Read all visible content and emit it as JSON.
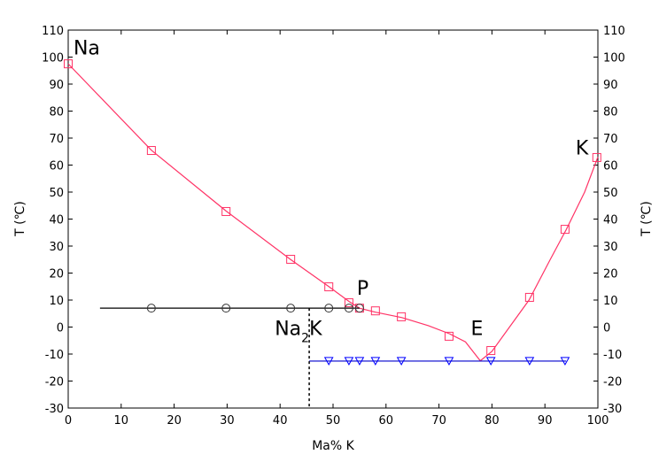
{
  "chart_data": {
    "type": "scatter",
    "xlabel": "Ma% K",
    "ylabel_left": "T (℃)",
    "ylabel_right": "T (℃)",
    "xlim": [
      0,
      100
    ],
    "ylim": [
      -30,
      110
    ],
    "xticks": [
      0,
      10,
      20,
      30,
      40,
      50,
      60,
      70,
      80,
      90,
      100
    ],
    "yticks": [
      -30,
      -20,
      -10,
      0,
      10,
      20,
      30,
      40,
      50,
      60,
      70,
      80,
      90,
      100,
      110
    ],
    "grid": false,
    "colors": {
      "liquidus": "#ff3366",
      "peritectic": "#000000",
      "eutectic": "#0000cc"
    },
    "liquidus_curve": [
      [
        0,
        97.5
      ],
      [
        15.7,
        65.5
      ],
      [
        29.8,
        43
      ],
      [
        42,
        25
      ],
      [
        49.2,
        15
      ],
      [
        53,
        9.5
      ],
      [
        55,
        7
      ],
      [
        58,
        5.5
      ],
      [
        63,
        3.5
      ],
      [
        68,
        0.5
      ],
      [
        72,
        -2.5
      ],
      [
        75,
        -5.5
      ],
      [
        77.8,
        -12.5
      ],
      [
        80,
        -9
      ],
      [
        87,
        10
      ],
      [
        91,
        25
      ],
      [
        94,
        36
      ],
      [
        97.5,
        50
      ],
      [
        100,
        63
      ]
    ],
    "series": [
      {
        "marker": "square",
        "color": "#ff3366",
        "x": [
          0,
          15.7,
          29.8,
          42,
          49.2,
          53,
          55,
          58,
          62.9,
          71.9,
          79.8,
          87.1,
          93.8,
          99.8
        ],
        "y": [
          97.5,
          65.4,
          42.8,
          25.1,
          14.9,
          9,
          7,
          6,
          3.8,
          -3.4,
          -8.7,
          11,
          36.2,
          62.8
        ]
      },
      {
        "marker": "circle",
        "color": "#333333",
        "x": [
          15.7,
          29.8,
          42,
          49.2,
          53,
          55
        ],
        "y": [
          7,
          7,
          7,
          7,
          7,
          7
        ]
      },
      {
        "marker": "triangle-down",
        "color": "#0000ff",
        "x": [
          49.2,
          53,
          55,
          58,
          62.9,
          71.9,
          79.8,
          87.1,
          93.8
        ],
        "y": [
          -12.6,
          -12.6,
          -12.6,
          -12.6,
          -12.6,
          -12.6,
          -12.6,
          -12.6,
          -12.6
        ]
      }
    ],
    "peritectic_line": {
      "x": [
        6,
        55
      ],
      "y": 7
    },
    "eutectic_line": {
      "x": [
        45.5,
        94
      ],
      "y": -12.6
    },
    "compound_line": {
      "x": 45.5,
      "y": [
        7,
        -30
      ]
    },
    "annotations": [
      {
        "text": "Na",
        "x": 1,
        "y": 101
      },
      {
        "text": "K",
        "x": 95.8,
        "y": 64
      },
      {
        "text": "P",
        "x": 54.5,
        "y": 12
      },
      {
        "text": "E",
        "x": 76,
        "y": -3
      },
      {
        "text": "Na",
        "sub": "2",
        "after": "K",
        "x": 39,
        "y": -3
      }
    ]
  }
}
